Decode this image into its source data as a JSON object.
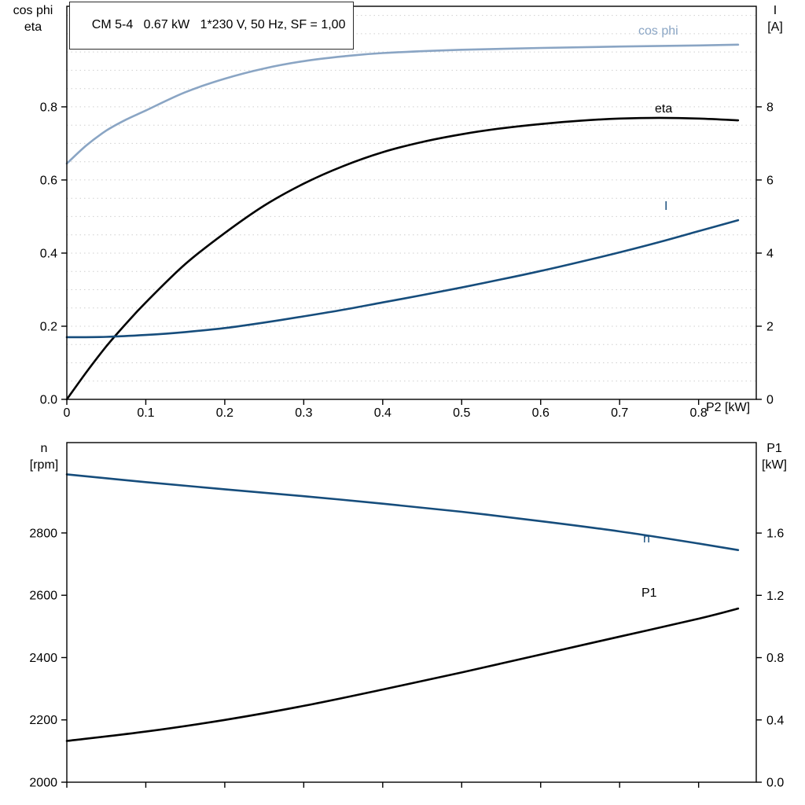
{
  "title_box": {
    "text": "CM 5-4   0.67 kW   1*230 V, 50 Hz, SF = 1,00"
  },
  "colors": {
    "cos_phi": "#8aa5c4",
    "current": "#164d7c",
    "black": "#000000",
    "grid": "#cfcfcf",
    "frame": "#000000"
  },
  "chart_data": [
    {
      "type": "line",
      "title": "CM 5-4   0.67 kW   1*230 V, 50 Hz, SF = 1,00",
      "xlabel": "P2 [kW]",
      "ylabel_left_lines": [
        "cos phi",
        "eta"
      ],
      "ylabel_right_lines": [
        "I",
        "[A]"
      ],
      "xlim": [
        0,
        0.873
      ],
      "ylim_left": [
        0,
        1.075
      ],
      "ylim_right": [
        0,
        10.75
      ],
      "grid": {
        "axis": "left",
        "step": 0.05
      },
      "xticks": {
        "values": [
          0,
          0.1,
          0.2,
          0.3,
          0.4,
          0.5,
          0.6,
          0.7,
          0.8
        ],
        "labels": [
          "0",
          "0.1",
          "0.2",
          "0.3",
          "0.4",
          "0.5",
          "0.6",
          "0.7",
          "0.8"
        ]
      },
      "yticks_left": {
        "values": [
          0,
          0.2,
          0.4,
          0.6,
          0.8
        ],
        "labels": [
          "0.0",
          "0.2",
          "0.4",
          "0.6",
          "0.8"
        ]
      },
      "yticks_right": {
        "values": [
          0,
          2,
          4,
          6,
          8
        ],
        "labels": [
          "0",
          "2",
          "4",
          "6",
          "8"
        ]
      },
      "series": [
        {
          "name": "cos phi",
          "axis": "left",
          "color_key": "cos_phi",
          "x": [
            0,
            0.025,
            0.05,
            0.075,
            0.1,
            0.15,
            0.2,
            0.25,
            0.3,
            0.35,
            0.4,
            0.5,
            0.6,
            0.7,
            0.8,
            0.85
          ],
          "y": [
            0.645,
            0.695,
            0.735,
            0.765,
            0.79,
            0.84,
            0.877,
            0.905,
            0.925,
            0.938,
            0.947,
            0.956,
            0.961,
            0.965,
            0.968,
            0.97
          ]
        },
        {
          "name": "eta",
          "axis": "left",
          "color_key": "black",
          "x": [
            0,
            0.025,
            0.05,
            0.075,
            0.1,
            0.15,
            0.2,
            0.25,
            0.3,
            0.35,
            0.4,
            0.45,
            0.5,
            0.55,
            0.6,
            0.65,
            0.7,
            0.75,
            0.8,
            0.85
          ],
          "y": [
            0,
            0.075,
            0.145,
            0.207,
            0.265,
            0.37,
            0.455,
            0.53,
            0.59,
            0.638,
            0.676,
            0.704,
            0.725,
            0.741,
            0.753,
            0.762,
            0.768,
            0.77,
            0.768,
            0.763
          ]
        },
        {
          "name": "I",
          "axis": "right",
          "color_key": "current",
          "x": [
            0,
            0.05,
            0.1,
            0.15,
            0.2,
            0.25,
            0.3,
            0.35,
            0.4,
            0.45,
            0.5,
            0.55,
            0.6,
            0.65,
            0.7,
            0.75,
            0.8,
            0.85
          ],
          "y": [
            1.7,
            1.71,
            1.76,
            1.84,
            1.95,
            2.1,
            2.27,
            2.45,
            2.65,
            2.85,
            3.06,
            3.28,
            3.51,
            3.76,
            4.02,
            4.3,
            4.6,
            4.9
          ]
        }
      ]
    },
    {
      "type": "line",
      "title": "",
      "xlabel": "",
      "ylabel_left_lines": [
        "n",
        "[rpm]"
      ],
      "ylabel_right_lines": [
        "P1",
        "[kW]"
      ],
      "xlim": [
        0,
        0.873
      ],
      "ylim_left": [
        2000,
        3090
      ],
      "ylim_right": [
        0,
        2.181
      ],
      "grid": null,
      "xticks": {
        "values": [
          0,
          0.1,
          0.2,
          0.3,
          0.4,
          0.5,
          0.6,
          0.7,
          0.8
        ],
        "labels": [
          null,
          null,
          null,
          null,
          null,
          null,
          null,
          null,
          null
        ]
      },
      "yticks_left": {
        "values": [
          2000,
          2200,
          2400,
          2600,
          2800
        ],
        "labels": [
          "2000",
          "2200",
          "2400",
          "2600",
          "2800"
        ]
      },
      "yticks_right": {
        "values": [
          0,
          0.4,
          0.8,
          1.2,
          1.6
        ],
        "labels": [
          "0.0",
          "0.4",
          "0.8",
          "1.2",
          "1.6"
        ]
      },
      "series": [
        {
          "name": "n",
          "axis": "left",
          "color_key": "current",
          "x": [
            0,
            0.1,
            0.2,
            0.3,
            0.4,
            0.5,
            0.6,
            0.7,
            0.8,
            0.85
          ],
          "y": [
            2988,
            2963,
            2940,
            2918,
            2894,
            2868,
            2838,
            2805,
            2766,
            2745
          ]
        },
        {
          "name": "P1",
          "axis": "right",
          "color_key": "black",
          "x": [
            0,
            0.1,
            0.2,
            0.3,
            0.4,
            0.5,
            0.6,
            0.7,
            0.8,
            0.85
          ],
          "y": [
            0.265,
            0.325,
            0.4,
            0.49,
            0.595,
            0.705,
            0.82,
            0.935,
            1.05,
            1.115
          ]
        }
      ]
    }
  ]
}
